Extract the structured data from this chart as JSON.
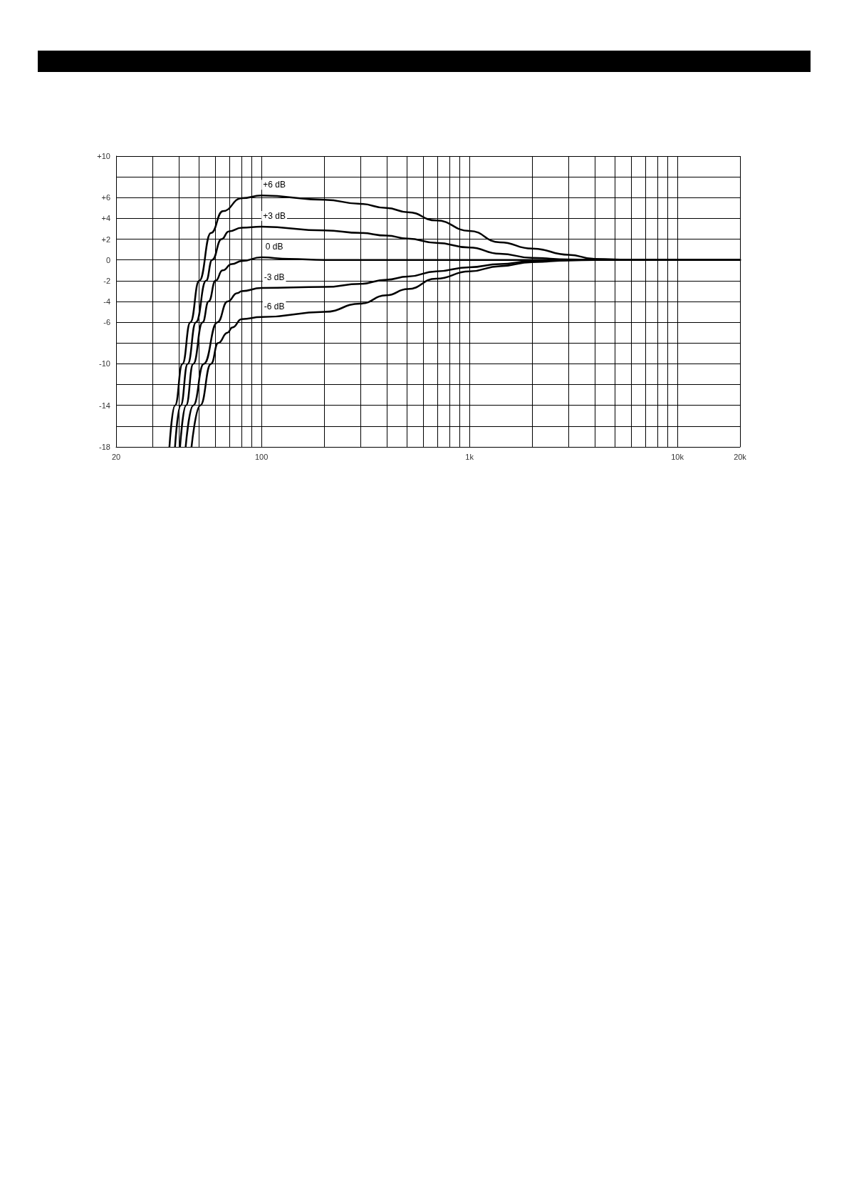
{
  "chart_data": {
    "type": "line",
    "log": "x",
    "grid": true,
    "legend": false,
    "marker": "none",
    "line_style": "solid",
    "xlim": [
      20,
      20000
    ],
    "xticks": [
      {
        "value": 20,
        "label": "20"
      },
      {
        "value": 30,
        "label": null
      },
      {
        "value": 40,
        "label": null
      },
      {
        "value": 50,
        "label": null
      },
      {
        "value": 60,
        "label": null
      },
      {
        "value": 70,
        "label": null
      },
      {
        "value": 80,
        "label": null
      },
      {
        "value": 90,
        "label": null
      },
      {
        "value": 100,
        "label": "100"
      },
      {
        "value": 200,
        "label": null
      },
      {
        "value": 300,
        "label": null
      },
      {
        "value": 400,
        "label": null
      },
      {
        "value": 500,
        "label": null
      },
      {
        "value": 600,
        "label": null
      },
      {
        "value": 700,
        "label": null
      },
      {
        "value": 800,
        "label": null
      },
      {
        "value": 900,
        "label": null
      },
      {
        "value": 1000,
        "label": "1k"
      },
      {
        "value": 2000,
        "label": null
      },
      {
        "value": 3000,
        "label": null
      },
      {
        "value": 4000,
        "label": null
      },
      {
        "value": 5000,
        "label": null
      },
      {
        "value": 6000,
        "label": null
      },
      {
        "value": 7000,
        "label": null
      },
      {
        "value": 8000,
        "label": null
      },
      {
        "value": 9000,
        "label": null
      },
      {
        "value": 10000,
        "label": "10k"
      },
      {
        "value": 20000,
        "label": "20k"
      }
    ],
    "ylim": [
      -18,
      10
    ],
    "yticks": [
      {
        "value": 10,
        "label": "+10"
      },
      {
        "value": 8,
        "label": null
      },
      {
        "value": 6,
        "label": "+6"
      },
      {
        "value": 4,
        "label": "+4"
      },
      {
        "value": 2,
        "label": "+2"
      },
      0,
      -2,
      -4,
      -6,
      {
        "value": -8,
        "label": null
      },
      -10,
      {
        "value": -12,
        "label": null
      },
      -14,
      {
        "value": -16,
        "label": null
      },
      -18
    ],
    "series": [
      {
        "name": "+6 dB",
        "color": "#000000",
        "x": [
          36.1,
          38.4,
          41.7,
          45.5,
          50.2,
          57.2,
          65.2,
          80.4,
          100,
          201,
          299,
          399,
          505,
          692,
          1000,
          1400,
          2000,
          3000,
          4000,
          6300,
          20000
        ],
        "values": [
          -18,
          -14,
          -10,
          -6,
          -2,
          2.6,
          4.7,
          5.95,
          6.2,
          5.8,
          5.4,
          5,
          4.6,
          3.8,
          2.8,
          1.7,
          1.1,
          0.5,
          0.1,
          0,
          0
        ]
      },
      {
        "name": "+3 dB",
        "color": "#000000",
        "x": [
          38.4,
          40.9,
          44.2,
          48.4,
          54.2,
          57.9,
          64.3,
          69.6,
          80.4,
          100,
          201,
          299,
          399,
          505,
          692,
          1000,
          1400,
          2000,
          3000,
          4000,
          20000
        ],
        "values": [
          -18,
          -14,
          -10,
          -6,
          -2,
          0,
          2,
          2.75,
          3.1,
          3.2,
          2.85,
          2.6,
          2.35,
          2.05,
          1.65,
          1.2,
          0.6,
          0.2,
          0.05,
          0,
          0
        ]
      },
      {
        "name": "0 dB",
        "color": "#000000",
        "x": [
          40.6,
          43.4,
          47,
          52.1,
          55.7,
          60.2,
          65,
          72,
          80.4,
          100,
          136,
          201,
          20000
        ],
        "values": [
          -18,
          -14,
          -10,
          -6,
          -4,
          -2,
          -1,
          -0.4,
          -0.1,
          0.25,
          0.1,
          0,
          0
        ]
      },
      {
        "name": "-3 dB",
        "color": "#000000",
        "x": [
          43.2,
          47,
          52.8,
          61.4,
          68.7,
          76.6,
          80.4,
          100,
          201,
          299,
          399,
          505,
          692,
          1000,
          1400,
          2000,
          3000,
          20000
        ],
        "values": [
          -18,
          -14,
          -10,
          -6,
          -4,
          -3.2,
          -3,
          -2.7,
          -2.6,
          -2.3,
          -1.9,
          -1.6,
          -1.1,
          -0.7,
          -0.4,
          -0.1,
          0,
          0
        ]
      },
      {
        "name": "-6 dB",
        "color": "#000000",
        "x": [
          46.1,
          50.8,
          57.2,
          61.9,
          68.7,
          72.4,
          80.4,
          100,
          201,
          299,
          399,
          505,
          692,
          1000,
          1400,
          2000,
          3000,
          4000,
          20000
        ],
        "values": [
          -18,
          -14,
          -10,
          -8,
          -7,
          -6.5,
          -5.7,
          -5.5,
          -5,
          -4.2,
          -3.4,
          -2.8,
          -1.8,
          -1.1,
          -0.6,
          -0.2,
          -0.05,
          0,
          0
        ]
      }
    ]
  }
}
